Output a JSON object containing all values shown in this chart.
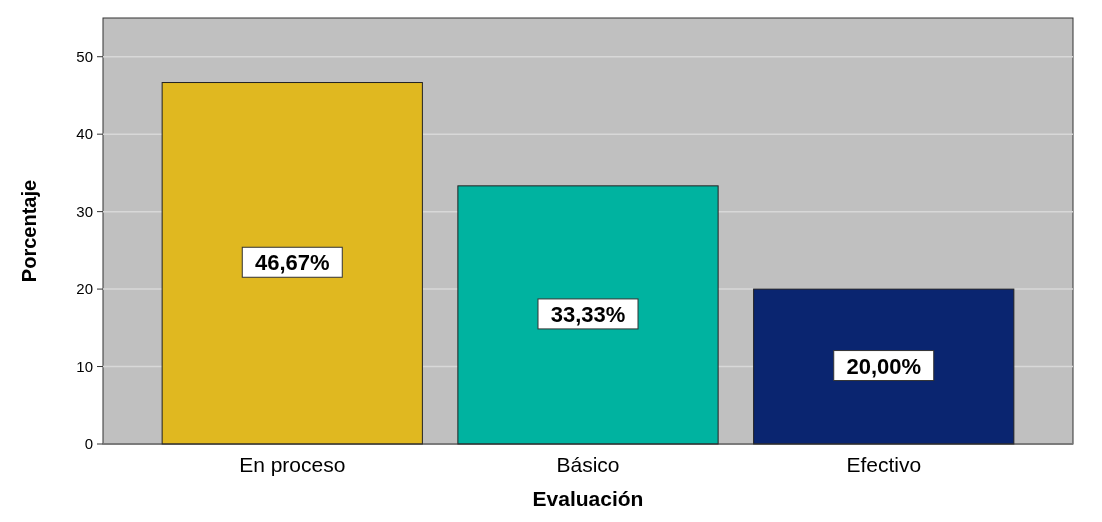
{
  "chart_data": {
    "type": "bar",
    "xlabel": "Evaluación",
    "ylabel": "Porcentaje",
    "categories": [
      "En proceso",
      "Básico",
      "Efectivo"
    ],
    "values": [
      46.67,
      33.33,
      20.0
    ],
    "colors": [
      "#e0b820",
      "#00b3a0",
      "#0a2570"
    ],
    "value_labels": [
      "46,67%",
      "33,33%",
      "20,00%"
    ],
    "ylim": [
      0,
      55
    ],
    "yticks": [
      0,
      10,
      20,
      30,
      40,
      50
    ],
    "grid": "y"
  }
}
